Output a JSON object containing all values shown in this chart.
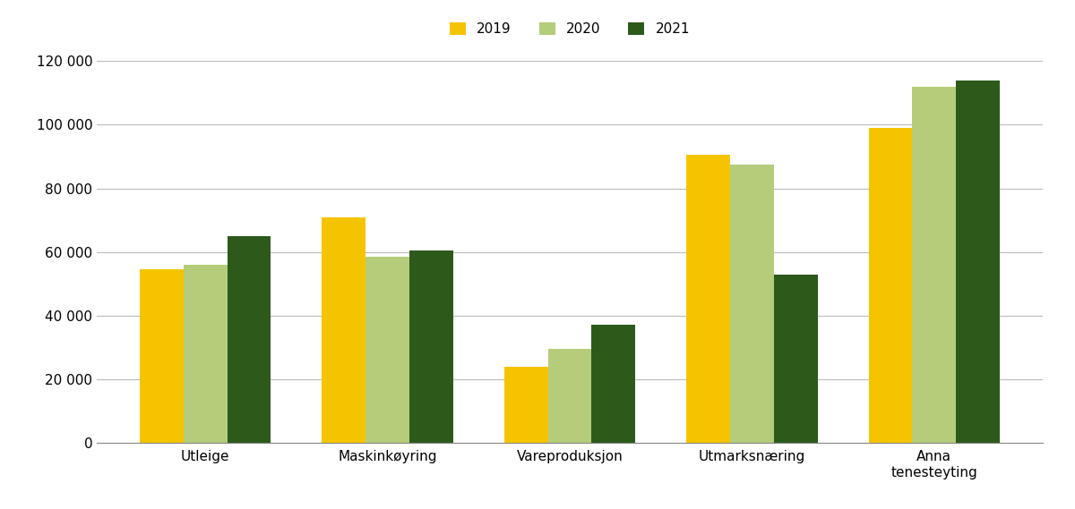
{
  "categories": [
    "Utleige",
    "Maskinkøyring",
    "Vareproduksjon",
    "Utmarksnæring",
    "Anna\ntenesteyting"
  ],
  "years": [
    "2019",
    "2020",
    "2021"
  ],
  "values": {
    "2019": [
      54500,
      71000,
      24000,
      90500,
      99000
    ],
    "2020": [
      56000,
      58500,
      29500,
      87500,
      112000
    ],
    "2021": [
      65000,
      60500,
      37000,
      53000,
      114000
    ]
  },
  "colors": {
    "2019": "#F5C400",
    "2020": "#B5CC7A",
    "2021": "#2D5A1B"
  },
  "ylim": [
    0,
    120000
  ],
  "yticks": [
    0,
    20000,
    40000,
    60000,
    80000,
    100000,
    120000
  ],
  "background_color": "#FFFFFF",
  "grid_color": "#BBBBBB",
  "bar_width": 0.24,
  "legend_fontsize": 11,
  "tick_fontsize": 11
}
